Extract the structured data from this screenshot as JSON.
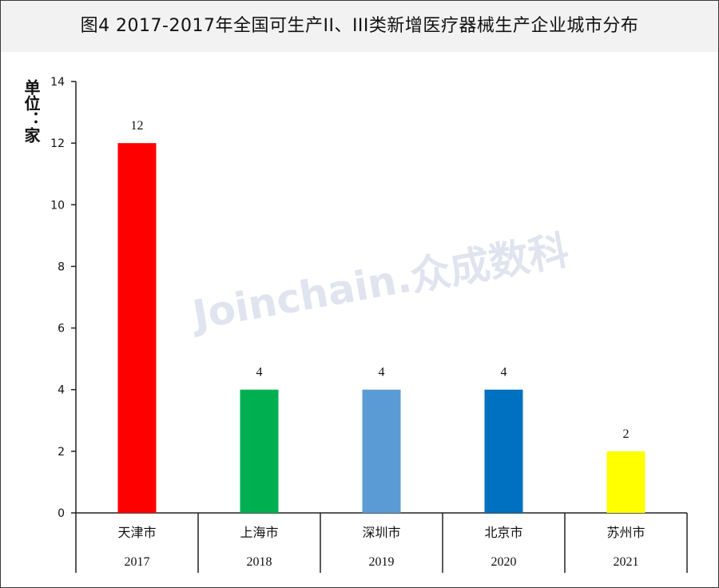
{
  "title": "图4  2017-2017年全国可生产II、III类新增医疗器械生产企业城市分布",
  "unit_label": "单位：家",
  "watermark": "Joinchain.众成数科",
  "chart_data": {
    "type": "bar",
    "categories": [
      "天津市",
      "上海市",
      "深圳市",
      "北京市",
      "苏州市"
    ],
    "years": [
      "2017",
      "2018",
      "2019",
      "2020",
      "2021"
    ],
    "values": [
      12,
      4,
      4,
      4,
      2
    ],
    "colors": [
      "#ff0000",
      "#00b050",
      "#5b9bd5",
      "#0070c0",
      "#ffff00"
    ],
    "yticks": [
      "0",
      "2",
      "4",
      "6",
      "8",
      "10",
      "12",
      "14"
    ],
    "ylim": [
      0,
      14
    ],
    "grid": false,
    "legend": "none"
  }
}
